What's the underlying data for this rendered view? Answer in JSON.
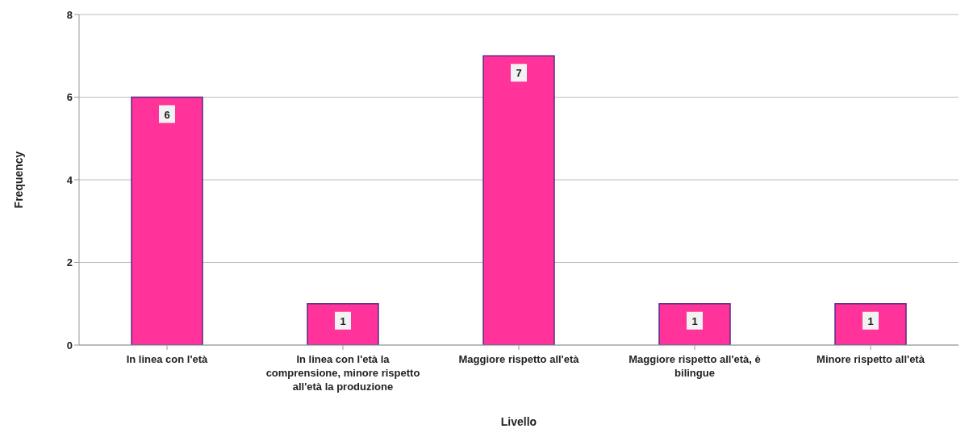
{
  "chart_data": {
    "type": "bar",
    "xlabel": "Livello",
    "ylabel": "Frequency",
    "categories": [
      "In linea con l'età",
      "In linea con l'età la comprensione, minore rispetto all'età la produzione",
      "Maggiore rispetto all'età",
      "Maggiore rispetto all'età, è bilingue",
      "Minore rispetto all'età"
    ],
    "values": [
      6,
      1,
      7,
      1,
      1
    ],
    "color": "#ff3399",
    "ylim": [
      0,
      8
    ],
    "yticks": [
      0,
      2,
      4,
      6,
      8
    ],
    "grid": "y",
    "data_labels": true
  }
}
